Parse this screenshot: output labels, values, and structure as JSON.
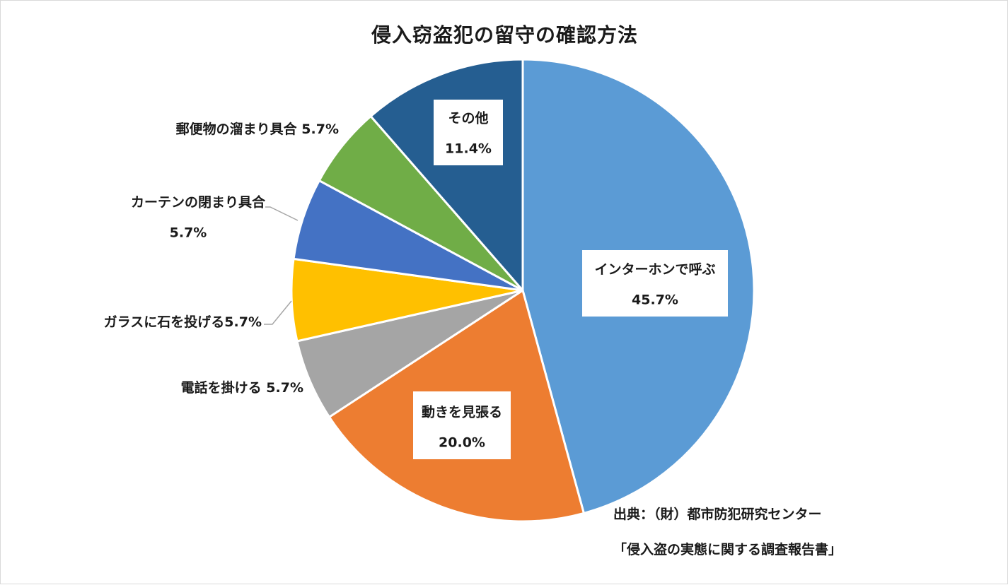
{
  "chart_data": {
    "type": "pie",
    "title": "侵入窃盗犯の留守の確認方法",
    "unit": "%",
    "slices": [
      {
        "label": "インターホンで呼ぶ",
        "value": 45.7,
        "value_text": "45.7%",
        "color": "#5b9bd5"
      },
      {
        "label": "動きを見張る",
        "value": 20.0,
        "value_text": "20.0%",
        "color": "#ed7d31"
      },
      {
        "label": "電話を掛ける",
        "value": 5.7,
        "value_text": "5.7%",
        "color": "#a5a5a5"
      },
      {
        "label": "ガラスに石を投げる",
        "value": 5.7,
        "value_text": "5.7%",
        "color": "#ffc000"
      },
      {
        "label": "カーテンの閉まり具合",
        "value": 5.7,
        "value_text": "5.7%",
        "color": "#4472c4"
      },
      {
        "label": "郵便物の溜まり具合",
        "value": 5.7,
        "value_text": "5.7%",
        "color": "#70ad47"
      },
      {
        "label": "その他",
        "value": 11.4,
        "value_text": "11.4%",
        "color": "#255e91"
      }
    ],
    "start_angle_deg": 0,
    "direction": "clockwise",
    "legend": "none"
  },
  "source": {
    "line1": "出典：（財）都市防犯研究センター",
    "line2": "「侵入盗の実態に関する調査報告書」"
  }
}
